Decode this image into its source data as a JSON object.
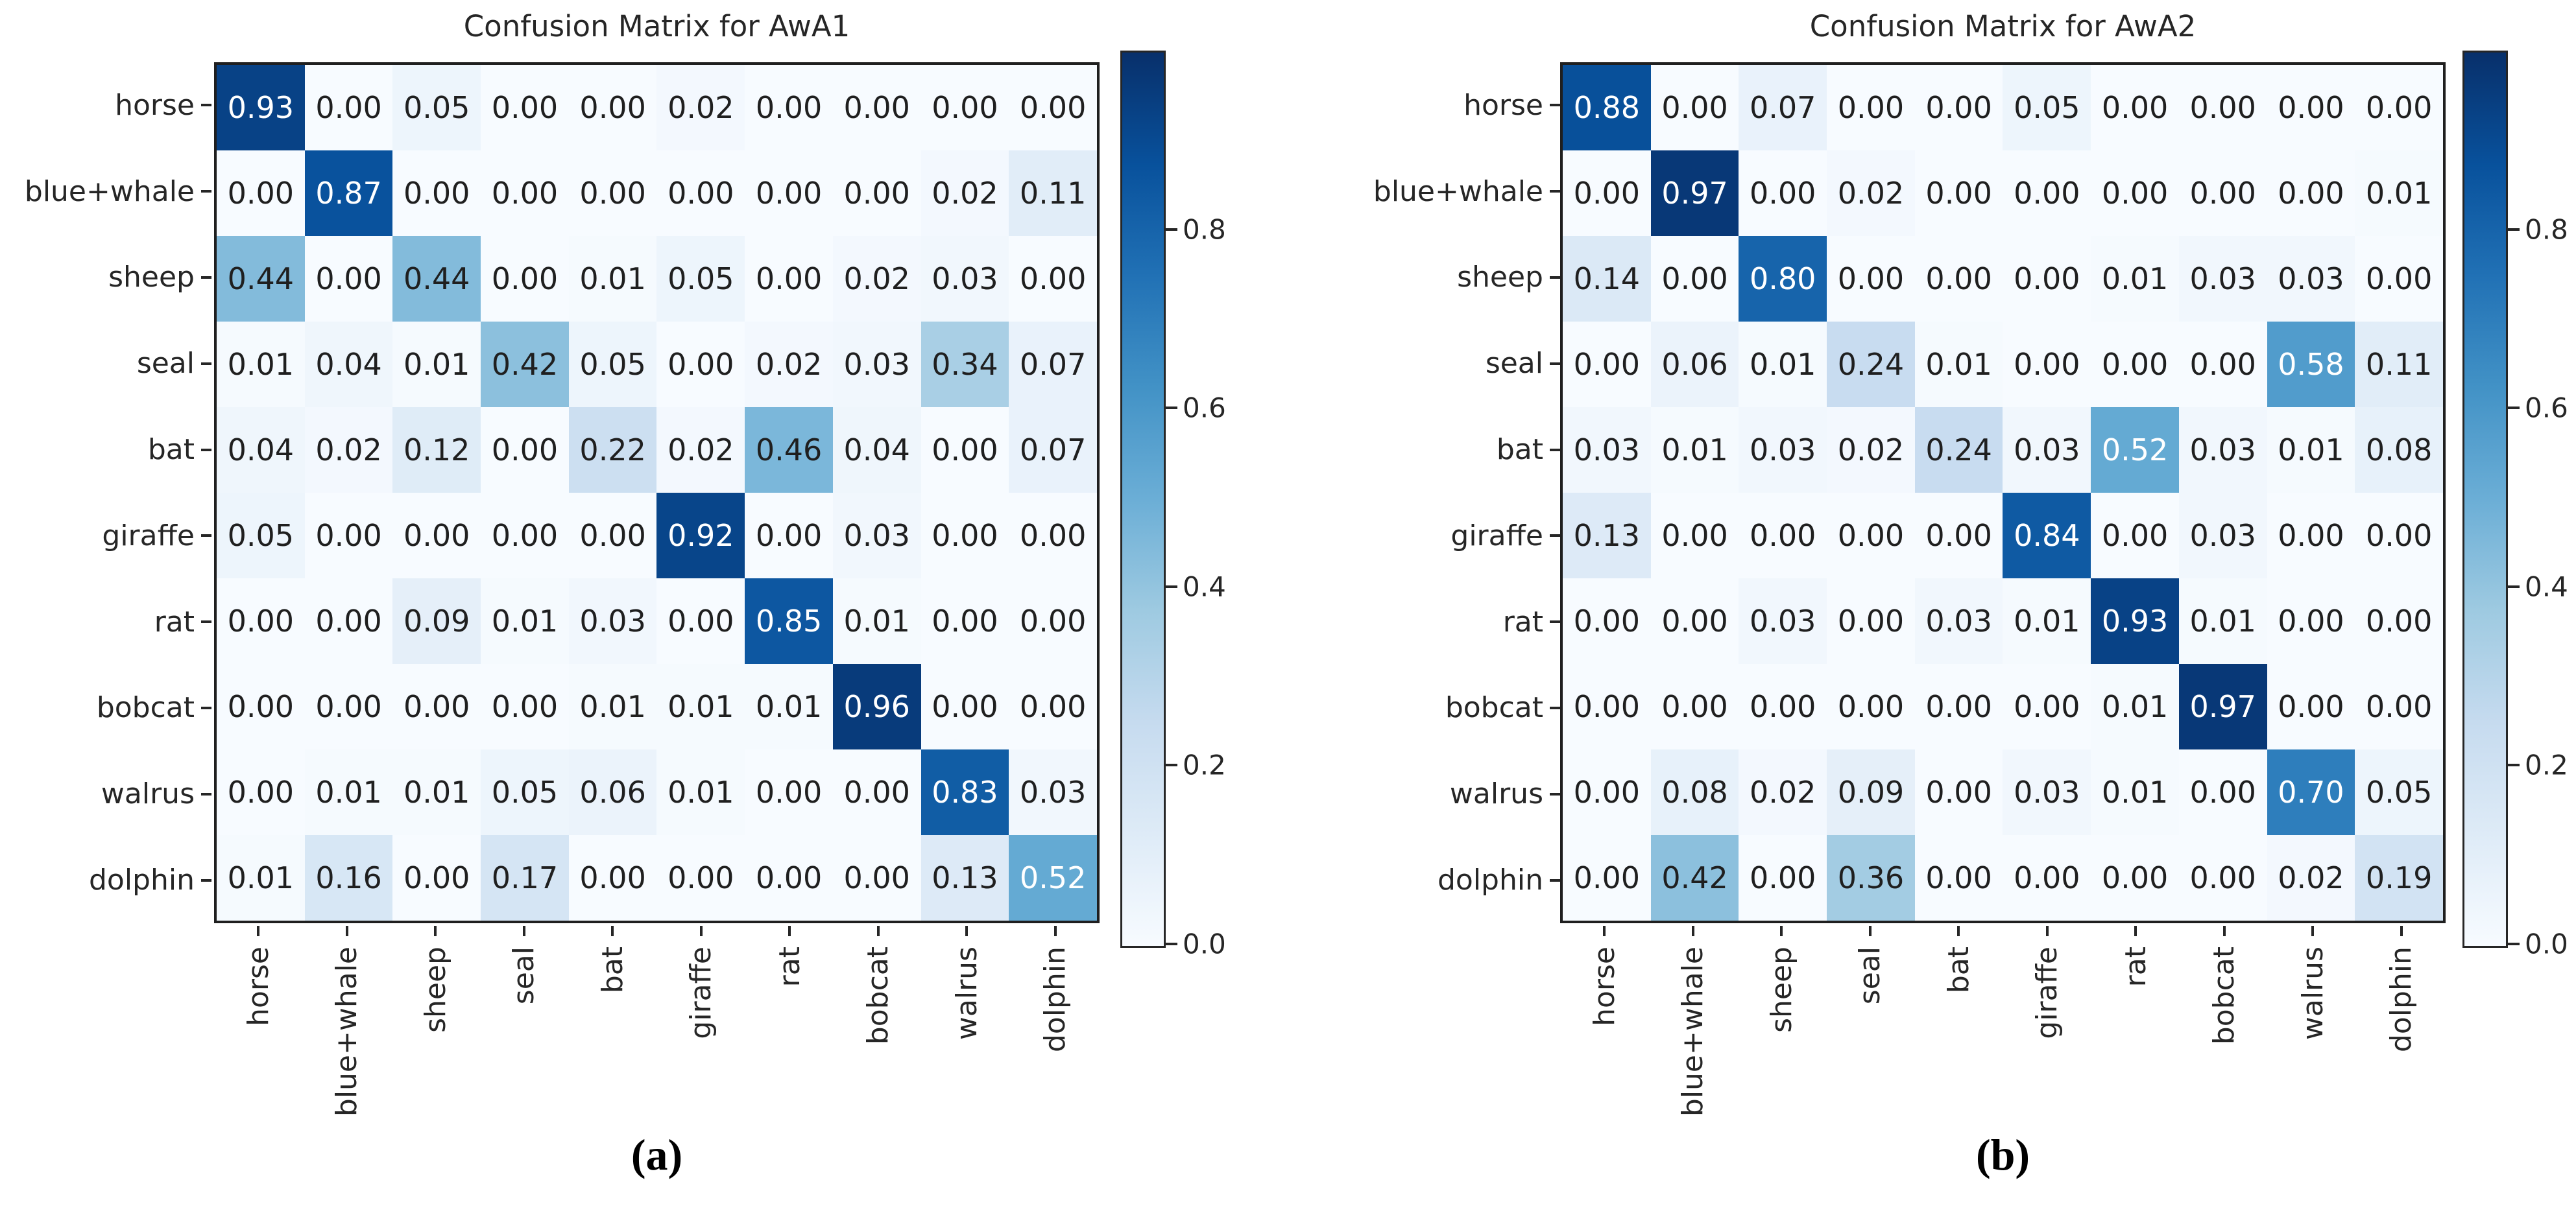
{
  "colormap": {
    "name": "Blues",
    "stops": [
      {
        "t": 0.0,
        "hex": "#f7fbff"
      },
      {
        "t": 0.125,
        "hex": "#deebf7"
      },
      {
        "t": 0.25,
        "hex": "#c6dbef"
      },
      {
        "t": 0.375,
        "hex": "#9ecae1"
      },
      {
        "t": 0.5,
        "hex": "#6baed6"
      },
      {
        "t": 0.625,
        "hex": "#4292c6"
      },
      {
        "t": 0.75,
        "hex": "#2171b5"
      },
      {
        "t": 0.875,
        "hex": "#08519c"
      },
      {
        "t": 1.0,
        "hex": "#08306b"
      }
    ]
  },
  "chart_data": [
    {
      "type": "heatmap",
      "title": "Confusion Matrix for AwA1",
      "caption": "(a)",
      "x_categories": [
        "horse",
        "blue+whale",
        "sheep",
        "seal",
        "bat",
        "giraffe",
        "rat",
        "bobcat",
        "walrus",
        "dolphin"
      ],
      "y_categories": [
        "horse",
        "blue+whale",
        "sheep",
        "seal",
        "bat",
        "giraffe",
        "rat",
        "bobcat",
        "walrus",
        "dolphin"
      ],
      "values": [
        [
          0.93,
          0.0,
          0.05,
          0.0,
          0.0,
          0.02,
          0.0,
          0.0,
          0.0,
          0.0
        ],
        [
          0.0,
          0.87,
          0.0,
          0.0,
          0.0,
          0.0,
          0.0,
          0.0,
          0.02,
          0.11
        ],
        [
          0.44,
          0.0,
          0.44,
          0.0,
          0.01,
          0.05,
          0.0,
          0.02,
          0.03,
          0.0
        ],
        [
          0.01,
          0.04,
          0.01,
          0.42,
          0.05,
          0.0,
          0.02,
          0.03,
          0.34,
          0.07
        ],
        [
          0.04,
          0.02,
          0.12,
          0.0,
          0.22,
          0.02,
          0.46,
          0.04,
          0.0,
          0.07
        ],
        [
          0.05,
          0.0,
          0.0,
          0.0,
          0.0,
          0.92,
          0.0,
          0.03,
          0.0,
          0.0
        ],
        [
          0.0,
          0.0,
          0.09,
          0.01,
          0.03,
          0.0,
          0.85,
          0.01,
          0.0,
          0.0
        ],
        [
          0.0,
          0.0,
          0.0,
          0.0,
          0.01,
          0.01,
          0.01,
          0.96,
          0.0,
          0.0
        ],
        [
          0.0,
          0.01,
          0.01,
          0.05,
          0.06,
          0.01,
          0.0,
          0.0,
          0.83,
          0.03
        ],
        [
          0.01,
          0.16,
          0.0,
          0.17,
          0.0,
          0.0,
          0.0,
          0.0,
          0.13,
          0.52
        ]
      ],
      "vmin": 0.0,
      "vmax": 1.0,
      "colorbar_ticks": [
        0.0,
        0.2,
        0.4,
        0.6,
        0.8
      ],
      "colormap": "Blues",
      "grid": false,
      "legend_position": "colorbar-right",
      "cell_text_colors": {
        "low": "#1f1f1f",
        "high": "#ffffff"
      }
    },
    {
      "type": "heatmap",
      "title": "Confusion Matrix for AwA2",
      "caption": "(b)",
      "x_categories": [
        "horse",
        "blue+whale",
        "sheep",
        "seal",
        "bat",
        "giraffe",
        "rat",
        "bobcat",
        "walrus",
        "dolphin"
      ],
      "y_categories": [
        "horse",
        "blue+whale",
        "sheep",
        "seal",
        "bat",
        "giraffe",
        "rat",
        "bobcat",
        "walrus",
        "dolphin"
      ],
      "values": [
        [
          0.88,
          0.0,
          0.07,
          0.0,
          0.0,
          0.05,
          0.0,
          0.0,
          0.0,
          0.0
        ],
        [
          0.0,
          0.97,
          0.0,
          0.02,
          0.0,
          0.0,
          0.0,
          0.0,
          0.0,
          0.01
        ],
        [
          0.14,
          0.0,
          0.8,
          0.0,
          0.0,
          0.0,
          0.01,
          0.03,
          0.03,
          0.0
        ],
        [
          0.0,
          0.06,
          0.01,
          0.24,
          0.01,
          0.0,
          0.0,
          0.0,
          0.58,
          0.11
        ],
        [
          0.03,
          0.01,
          0.03,
          0.02,
          0.24,
          0.03,
          0.52,
          0.03,
          0.01,
          0.08
        ],
        [
          0.13,
          0.0,
          0.0,
          0.0,
          0.0,
          0.84,
          0.0,
          0.03,
          0.0,
          0.0
        ],
        [
          0.0,
          0.0,
          0.03,
          0.0,
          0.03,
          0.01,
          0.93,
          0.01,
          0.0,
          0.0
        ],
        [
          0.0,
          0.0,
          0.0,
          0.0,
          0.0,
          0.0,
          0.01,
          0.97,
          0.0,
          0.0
        ],
        [
          0.0,
          0.08,
          0.02,
          0.09,
          0.0,
          0.03,
          0.01,
          0.0,
          0.7,
          0.05
        ],
        [
          0.0,
          0.42,
          0.0,
          0.36,
          0.0,
          0.0,
          0.0,
          0.0,
          0.02,
          0.19
        ]
      ],
      "vmin": 0.0,
      "vmax": 1.0,
      "colorbar_ticks": [
        0.0,
        0.2,
        0.4,
        0.6,
        0.8
      ],
      "colormap": "Blues",
      "grid": false,
      "legend_position": "colorbar-right",
      "cell_text_colors": {
        "low": "#1f1f1f",
        "high": "#ffffff"
      }
    }
  ]
}
